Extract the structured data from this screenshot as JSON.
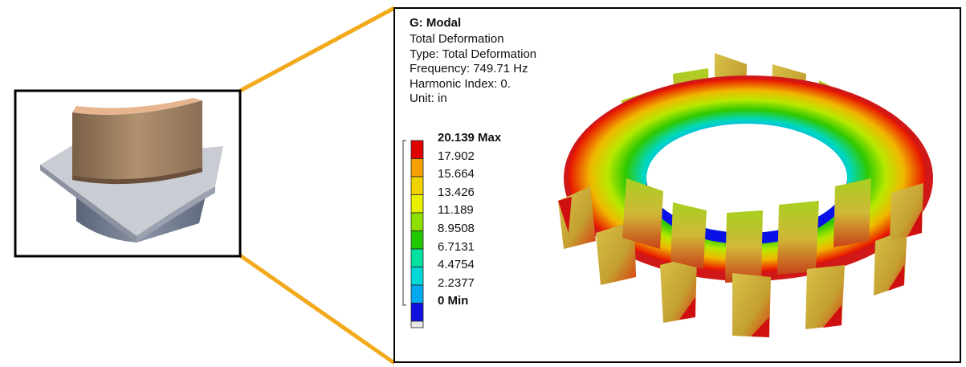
{
  "panel": {
    "title": "G: Modal",
    "lines": [
      "Total Deformation",
      "Type: Total Deformation",
      "Frequency: 749.71 Hz",
      "Harmonic Index: 0.",
      "Unit: in"
    ]
  },
  "legend": {
    "labels": [
      "20.139 Max",
      "17.902",
      "15.664",
      "13.426",
      "11.189",
      "8.9508",
      "6.7131",
      "4.4754",
      "2.2377",
      "0 Min"
    ],
    "colors": [
      "#e00000",
      "#f5a000",
      "#f0d200",
      "#e8f000",
      "#8ee000",
      "#20c800",
      "#00e0a0",
      "#00d8d8",
      "#00a8f0",
      "#1010e0"
    ],
    "below_min_color": "#e8e8e8"
  },
  "colors": {
    "connector": "#f2aa1c",
    "frame": "#000000",
    "blade_base": "#b8a040"
  }
}
